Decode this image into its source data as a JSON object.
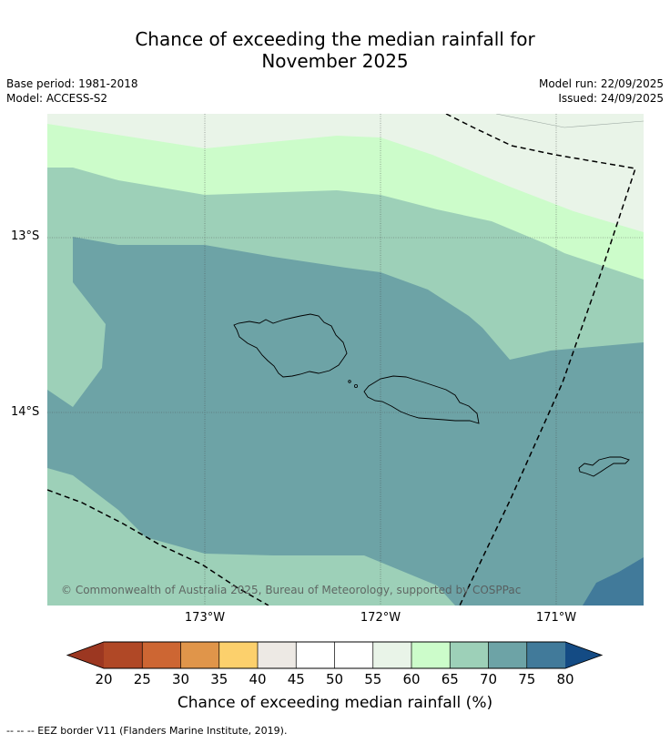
{
  "title": {
    "line1": "Chance of exceeding the median rainfall for",
    "line2": "November 2025"
  },
  "metadata": {
    "base_period": "Base period: 1981-2018",
    "model": "Model: ACCESS-S2",
    "model_run": "Model run: 22/09/2025",
    "issued": "Issued: 24/09/2025"
  },
  "map": {
    "latitude_labels": [
      "13°S",
      "14°S"
    ],
    "longitude_labels": [
      "173°W",
      "172°W",
      "171°W"
    ],
    "copyright": "© Commonwealth of Australia 2025, Bureau of Meteorology, supported by COSPPac",
    "region_values": {
      "outer_band": 50,
      "light_green_band": 60,
      "mid_green_band": 65,
      "teal_core": 70,
      "dark_blue_corner": 75
    }
  },
  "colorbar": {
    "ticks": [
      "20",
      "25",
      "30",
      "35",
      "40",
      "45",
      "50",
      "55",
      "60",
      "65",
      "70",
      "75",
      "80"
    ],
    "colors": [
      "#b04826",
      "#cd6633",
      "#e0954a",
      "#fcd06c",
      "#ede9e4",
      "#ffffff",
      "#ffffff",
      "#e9f4e8",
      "#ccfcca",
      "#9dd0b8",
      "#6da3a6",
      "#417a9a"
    ],
    "below_color": "#9c3721",
    "above_color": "#144b84",
    "label": "Chance of exceeding median rainfall (%)"
  },
  "footnote": "--  --  -- EEZ border V11 (Flanders Marine Institute, 2019)."
}
